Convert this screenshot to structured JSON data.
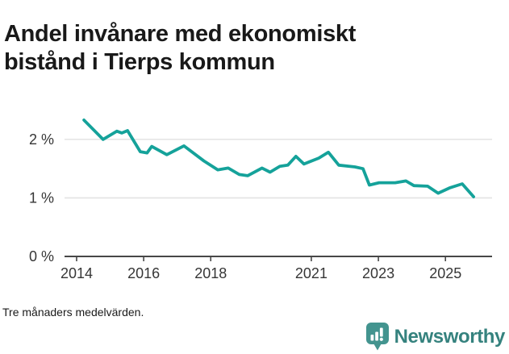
{
  "title": {
    "full": "Andel invånare med ekonomiskt bistånd i Tierps kommun",
    "lines": [
      "Andel invånare med ekonomiskt",
      "bistånd i Tierps kommun"
    ]
  },
  "footnote": "Tre månaders medelvärden.",
  "logo": {
    "name": "Newsworthy",
    "icon": "newsworthy-bubble-chart-icon",
    "icon_color": "#43948f",
    "icon_bar_color": "#ffffff",
    "text_color": "#35827e"
  },
  "colors": {
    "line": "#15a29a",
    "grid": "#e3e3e3",
    "axis": "#474747",
    "tick_label": "#363636",
    "title": "#191919"
  },
  "chart_data": {
    "type": "line",
    "title": "Andel invånare med ekonomiskt bistånd i Tierps kommun",
    "xlabel": "",
    "ylabel": "",
    "grid": "horizontal-only",
    "legend": "none",
    "xlim": [
      2013.64,
      2026.39
    ],
    "ylim": [
      0,
      2.66
    ],
    "x_ticks": [
      {
        "value": 2014,
        "label": "2014"
      },
      {
        "value": 2016,
        "label": "2016"
      },
      {
        "value": 2018,
        "label": "2018"
      },
      {
        "value": 2021,
        "label": "2021"
      },
      {
        "value": 2023,
        "label": "2023"
      },
      {
        "value": 2025,
        "label": "2025"
      }
    ],
    "y_ticks": [
      {
        "value": 0,
        "label": "0 %"
      },
      {
        "value": 1,
        "label": "1 %"
      },
      {
        "value": 2,
        "label": "2 %"
      }
    ],
    "series": [
      {
        "name": "Andel invånare med ekonomiskt bistånd, Tierps kommun (%)",
        "points": [
          [
            2014.22,
            2.33
          ],
          [
            2014.79,
            2.0
          ],
          [
            2015.2,
            2.14
          ],
          [
            2015.35,
            2.11
          ],
          [
            2015.52,
            2.15
          ],
          [
            2015.9,
            1.79
          ],
          [
            2016.1,
            1.77
          ],
          [
            2016.24,
            1.88
          ],
          [
            2016.69,
            1.74
          ],
          [
            2017.2,
            1.89
          ],
          [
            2017.8,
            1.63
          ],
          [
            2018.21,
            1.48
          ],
          [
            2018.52,
            1.51
          ],
          [
            2018.85,
            1.4
          ],
          [
            2019.1,
            1.38
          ],
          [
            2019.53,
            1.51
          ],
          [
            2019.77,
            1.44
          ],
          [
            2020.06,
            1.54
          ],
          [
            2020.3,
            1.56
          ],
          [
            2020.54,
            1.71
          ],
          [
            2020.78,
            1.58
          ],
          [
            2021.22,
            1.68
          ],
          [
            2021.51,
            1.78
          ],
          [
            2021.82,
            1.56
          ],
          [
            2022.3,
            1.53
          ],
          [
            2022.54,
            1.5
          ],
          [
            2022.73,
            1.22
          ],
          [
            2023.02,
            1.26
          ],
          [
            2023.5,
            1.26
          ],
          [
            2023.82,
            1.29
          ],
          [
            2024.06,
            1.21
          ],
          [
            2024.47,
            1.2
          ],
          [
            2024.78,
            1.08
          ],
          [
            2025.12,
            1.17
          ],
          [
            2025.5,
            1.24
          ],
          [
            2025.84,
            1.02
          ]
        ]
      }
    ]
  }
}
